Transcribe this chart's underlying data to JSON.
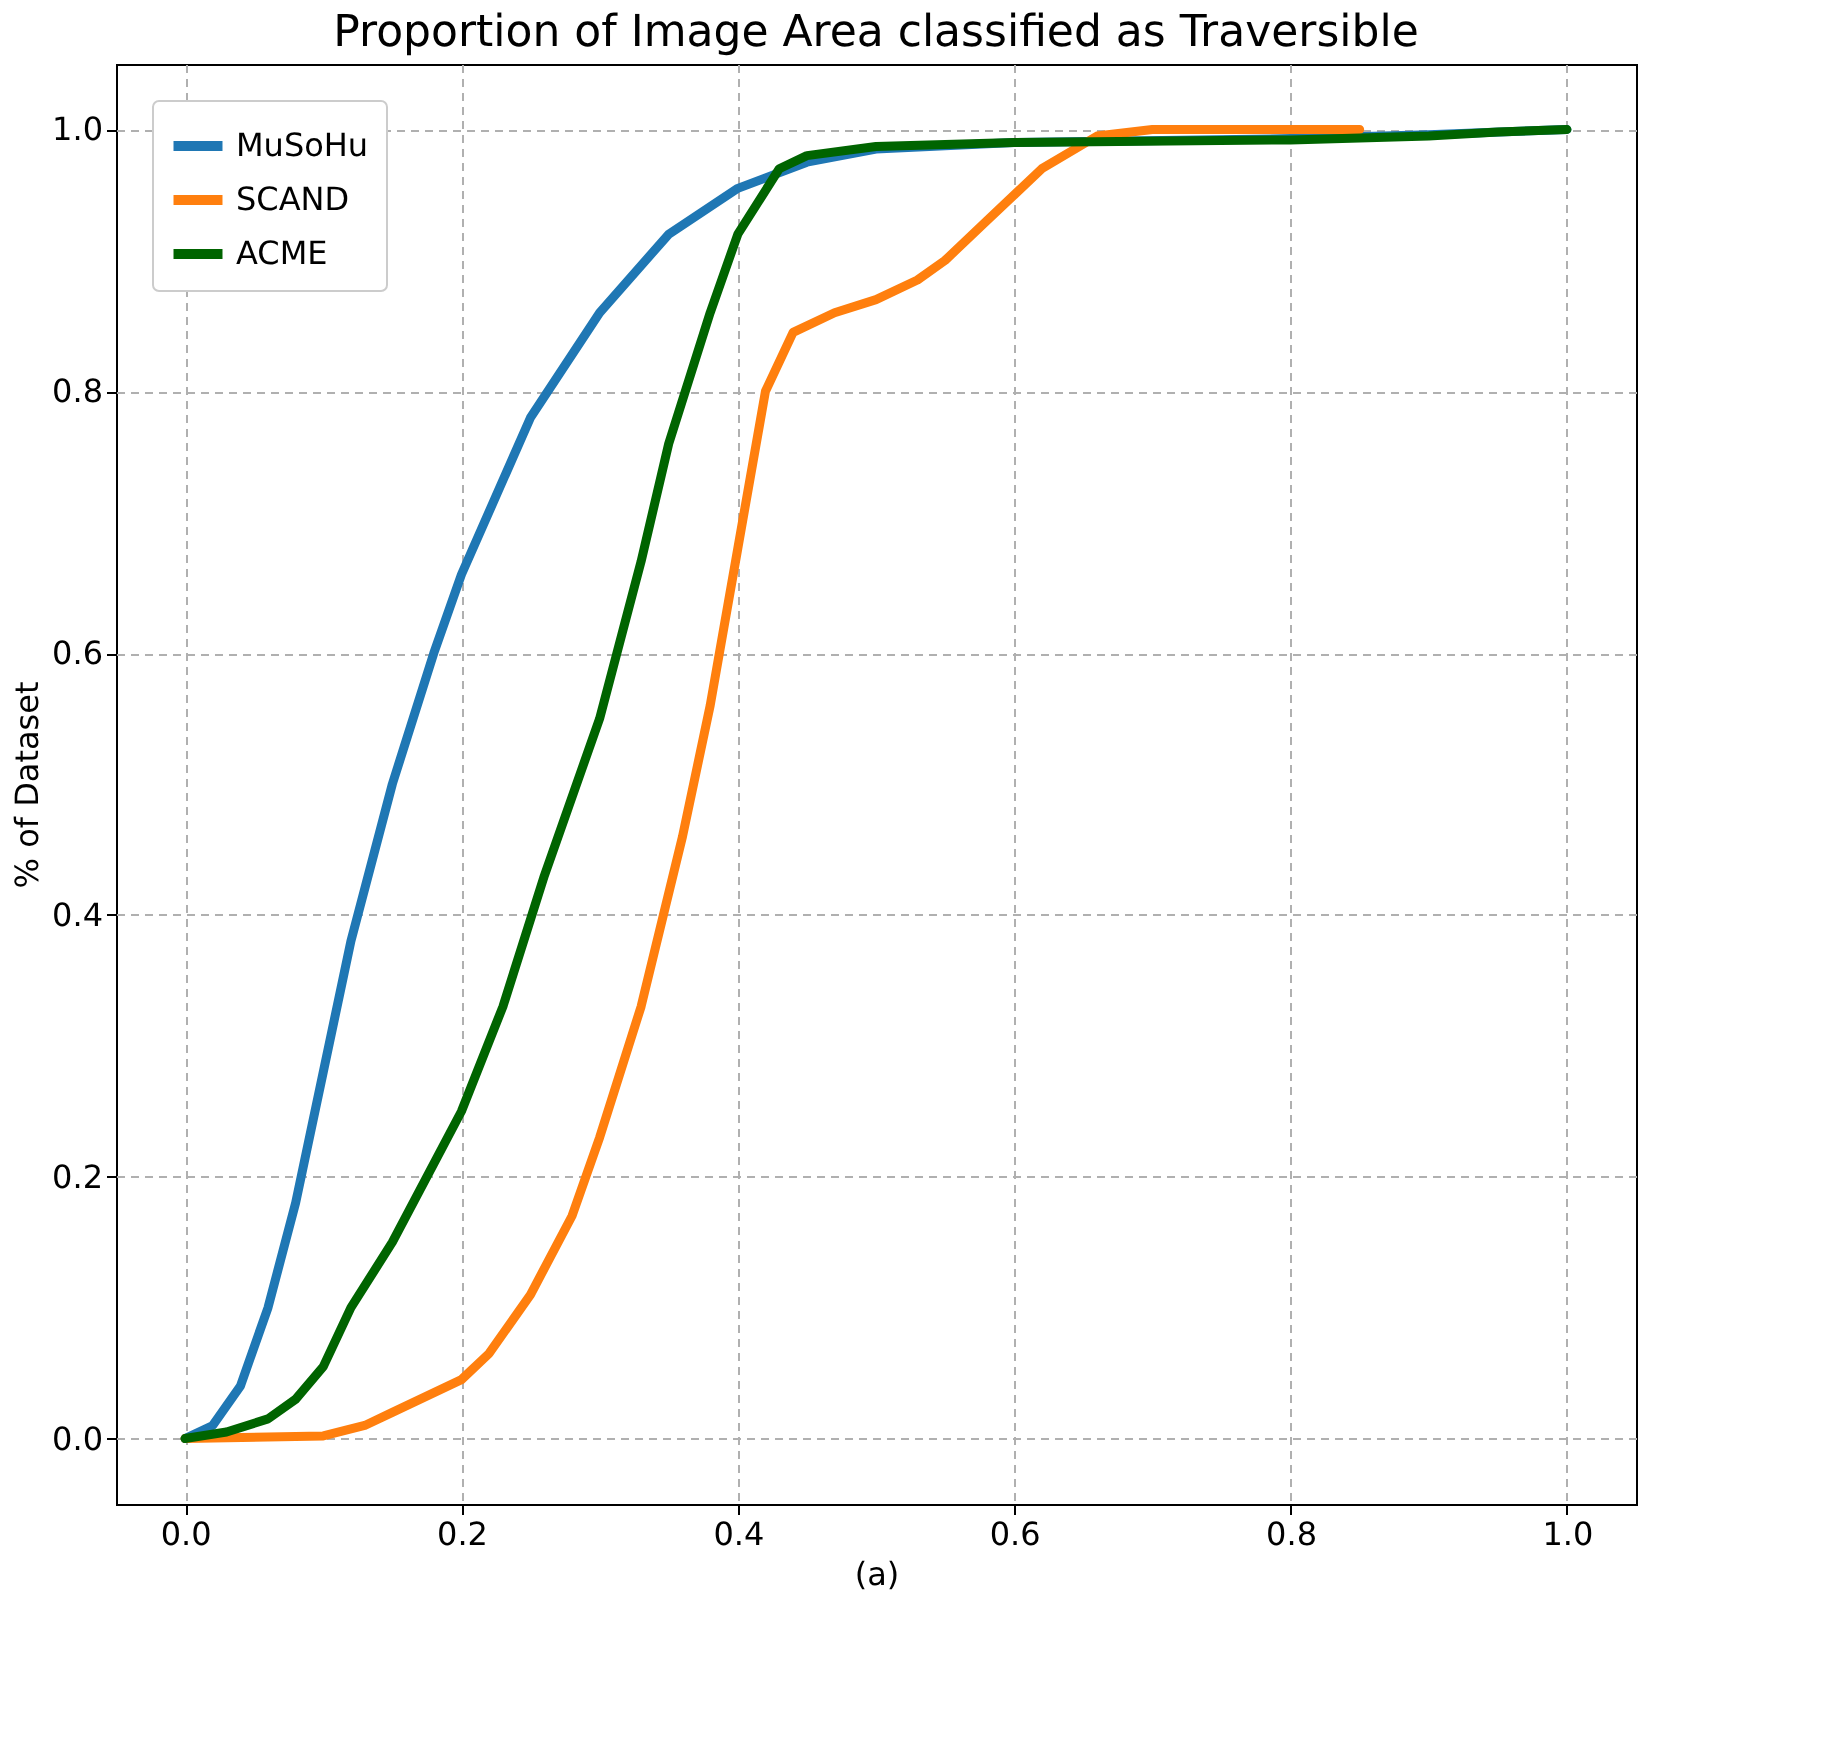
{
  "chart_data": {
    "type": "line",
    "title": "Proportion of Image Area classified as Traversible",
    "xlabel": "(a)",
    "ylabel": "% of Dataset",
    "xlim": [
      -0.05,
      1.05
    ],
    "ylim": [
      -0.05,
      1.05
    ],
    "xticks": [
      {
        "value": 0,
        "label": "0.0"
      },
      {
        "value": 0.2,
        "label": "0.2"
      },
      {
        "value": 0.4,
        "label": "0.4"
      },
      {
        "value": 0.6,
        "label": "0.6"
      },
      {
        "value": 0.8,
        "label": "0.8"
      },
      {
        "value": 1,
        "label": "1.0"
      }
    ],
    "yticks": [
      {
        "value": 0,
        "label": "0.0"
      },
      {
        "value": 0.2,
        "label": "0.2"
      },
      {
        "value": 0.4,
        "label": "0.4"
      },
      {
        "value": 0.6,
        "label": "0.6"
      },
      {
        "value": 0.8,
        "label": "0.8"
      },
      {
        "value": 1,
        "label": "1.0"
      }
    ],
    "grid": true,
    "legend": "top left",
    "line_style": "solid",
    "marker": "none",
    "series": [
      {
        "name": "MuSoHu",
        "color": "#1f77b4",
        "x": [
          0,
          0.02,
          0.04,
          0.06,
          0.08,
          0.1,
          0.12,
          0.15,
          0.18,
          0.2,
          0.25,
          0.3,
          0.35,
          0.4,
          0.45,
          0.5,
          0.6,
          0.8,
          0.9,
          1.0
        ],
        "values": [
          0,
          0.01,
          0.04,
          0.1,
          0.18,
          0.28,
          0.38,
          0.5,
          0.6,
          0.66,
          0.78,
          0.86,
          0.92,
          0.955,
          0.975,
          0.985,
          0.99,
          0.993,
          0.996,
          1.0
        ]
      },
      {
        "name": "SCAND",
        "color": "#ff7f0e",
        "x": [
          0,
          0.1,
          0.13,
          0.15,
          0.2,
          0.22,
          0.25,
          0.28,
          0.3,
          0.33,
          0.36,
          0.38,
          0.4,
          0.42,
          0.44,
          0.47,
          0.5,
          0.53,
          0.55,
          0.58,
          0.62,
          0.66,
          0.7,
          0.85
        ],
        "values": [
          0,
          0.002,
          0.01,
          0.02,
          0.045,
          0.065,
          0.11,
          0.17,
          0.23,
          0.33,
          0.46,
          0.56,
          0.68,
          0.8,
          0.845,
          0.86,
          0.87,
          0.885,
          0.9,
          0.93,
          0.97,
          0.995,
          1.0,
          1.0
        ]
      },
      {
        "name": "ACME",
        "color": "#006400",
        "x": [
          0,
          0.03,
          0.06,
          0.08,
          0.1,
          0.12,
          0.15,
          0.18,
          0.2,
          0.23,
          0.26,
          0.3,
          0.33,
          0.35,
          0.38,
          0.4,
          0.43,
          0.45,
          0.5,
          0.6,
          0.8,
          0.9,
          0.95,
          1.0
        ],
        "values": [
          0,
          0.005,
          0.015,
          0.03,
          0.055,
          0.1,
          0.15,
          0.21,
          0.25,
          0.33,
          0.43,
          0.55,
          0.67,
          0.76,
          0.86,
          0.92,
          0.97,
          0.98,
          0.987,
          0.99,
          0.992,
          0.995,
          0.998,
          1.0
        ]
      }
    ]
  }
}
